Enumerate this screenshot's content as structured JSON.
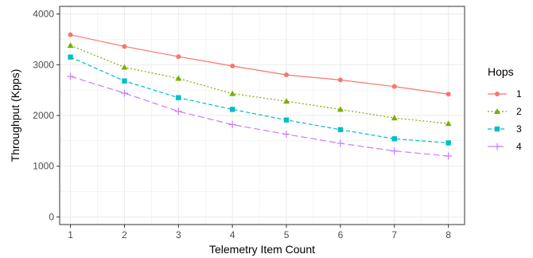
{
  "chart_data": {
    "type": "line",
    "xlabel": "Telemetry Item Count",
    "ylabel": "Throughput (Kpps)",
    "x": [
      1,
      2,
      3,
      4,
      5,
      6,
      7,
      8
    ],
    "xlim": [
      0.8,
      8.3
    ],
    "ylim": [
      -150,
      4150
    ],
    "yticks": [
      0,
      1000,
      2000,
      3000,
      4000
    ],
    "grid": true,
    "legend": {
      "title": "Hops",
      "position": "right"
    },
    "series": [
      {
        "name": "1",
        "color": "#F8766D",
        "linestyle": "solid",
        "marker": "circle",
        "values": [
          3590,
          3360,
          3160,
          2975,
          2800,
          2700,
          2570,
          2420
        ]
      },
      {
        "name": "2",
        "color": "#7CAE00",
        "linestyle": "dotted",
        "marker": "triangle",
        "values": [
          3380,
          2950,
          2730,
          2430,
          2280,
          2120,
          1950,
          1840
        ]
      },
      {
        "name": "3",
        "color": "#00BFC4",
        "linestyle": "dashed",
        "marker": "square",
        "values": [
          3150,
          2680,
          2350,
          2120,
          1910,
          1720,
          1540,
          1460
        ]
      },
      {
        "name": "4",
        "color": "#C77CFF",
        "linestyle": "longdash",
        "marker": "plus",
        "values": [
          2770,
          2440,
          2080,
          1820,
          1630,
          1450,
          1300,
          1200
        ]
      }
    ]
  }
}
